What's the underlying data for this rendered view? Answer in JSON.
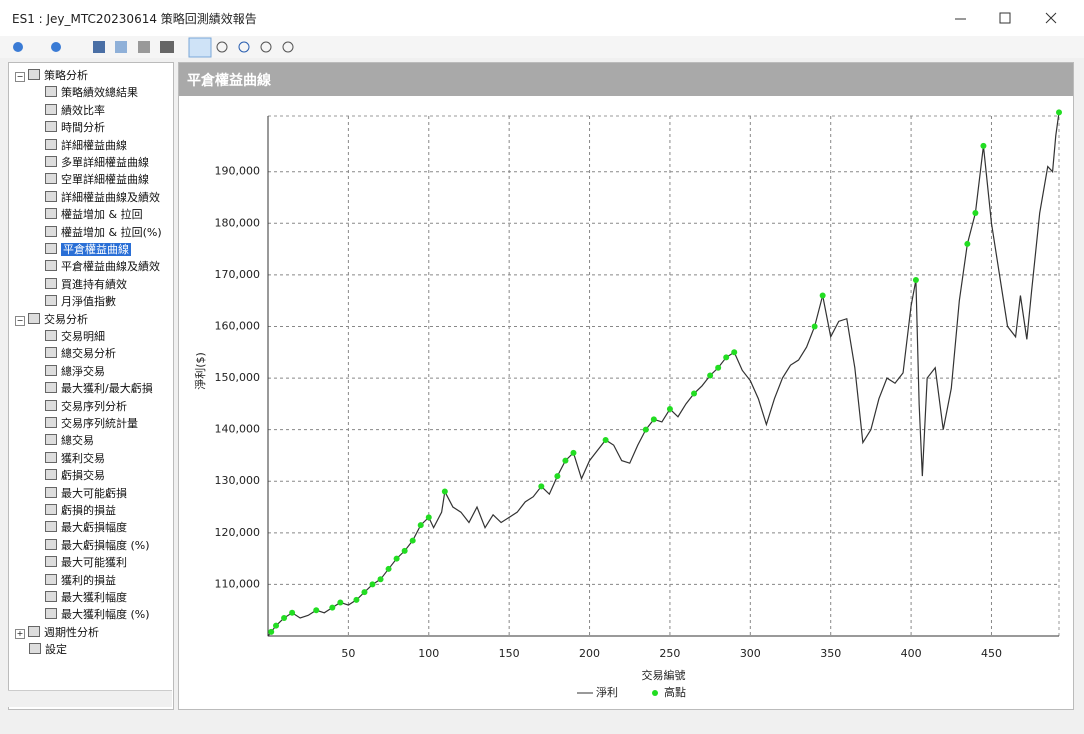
{
  "window": {
    "title": "ES1 : Jey_MTC20230614 策略回測績效報告"
  },
  "tree": [
    {
      "label": "策略分析",
      "children": [
        {
          "label": "策略績效總結果"
        },
        {
          "label": "績效比率"
        },
        {
          "label": "時間分析"
        },
        {
          "label": "詳細權益曲線"
        },
        {
          "label": "多單詳細權益曲線"
        },
        {
          "label": "空單詳細權益曲線"
        },
        {
          "label": "詳細權益曲線及績效"
        },
        {
          "label": "權益增加 & 拉回"
        },
        {
          "label": "權益增加 & 拉回(%)"
        },
        {
          "label": "平倉權益曲線",
          "selected": true
        },
        {
          "label": "平倉權益曲線及績效"
        },
        {
          "label": "買進持有績效"
        },
        {
          "label": "月淨值指數"
        }
      ]
    },
    {
      "label": "交易分析",
      "children": [
        {
          "label": "交易明細"
        },
        {
          "label": "總交易分析"
        },
        {
          "label": "總淨交易"
        },
        {
          "label": "最大獲利/最大虧損"
        },
        {
          "label": "交易序列分析"
        },
        {
          "label": "交易序列統計量"
        },
        {
          "label": "總交易"
        },
        {
          "label": "獲利交易"
        },
        {
          "label": "虧損交易"
        },
        {
          "label": "最大可能虧損"
        },
        {
          "label": "虧損的損益"
        },
        {
          "label": "最大虧損幅度"
        },
        {
          "label": "最大虧損幅度 (%)"
        },
        {
          "label": "最大可能獲利"
        },
        {
          "label": "獲利的損益"
        },
        {
          "label": "最大獲利幅度"
        },
        {
          "label": "最大獲利幅度 (%)"
        }
      ]
    },
    {
      "label": "週期性分析",
      "children": []
    },
    {
      "label": "設定"
    }
  ],
  "panel": {
    "title": "平倉權益曲線"
  },
  "chart_data": {
    "type": "line",
    "x_label": "交易編號",
    "y_label": "淨利($)",
    "xlim": [
      0,
      492
    ],
    "xticks": [
      50,
      100,
      150,
      200,
      250,
      300,
      350,
      400,
      450
    ],
    "ylim": [
      100000,
      200800
    ],
    "yticks": [
      {
        "value": 110000,
        "label": "110,000"
      },
      {
        "value": 120000,
        "label": "120,000"
      },
      {
        "value": 130000,
        "label": "130,000"
      },
      {
        "value": 140000,
        "label": "140,000"
      },
      {
        "value": 150000,
        "label": "150,000"
      },
      {
        "value": 160000,
        "label": "160,000"
      },
      {
        "value": 170000,
        "label": "170,000"
      },
      {
        "value": 180000,
        "label": "180,000"
      },
      {
        "value": 190000,
        "label": "190,000"
      }
    ],
    "grid": true,
    "series": [
      {
        "name": "淨利",
        "kind": "line",
        "color": "#333333",
        "x": [
          0,
          5,
          10,
          15,
          20,
          25,
          30,
          35,
          40,
          45,
          50,
          55,
          60,
          65,
          70,
          75,
          80,
          85,
          90,
          95,
          100,
          103,
          108,
          110,
          115,
          120,
          125,
          130,
          135,
          140,
          145,
          150,
          155,
          160,
          165,
          170,
          175,
          180,
          185,
          190,
          195,
          200,
          205,
          210,
          215,
          220,
          225,
          230,
          235,
          240,
          245,
          250,
          255,
          260,
          265,
          270,
          275,
          280,
          285,
          290,
          295,
          300,
          305,
          310,
          315,
          320,
          325,
          330,
          335,
          340,
          345,
          350,
          355,
          360,
          365,
          370,
          375,
          380,
          385,
          390,
          395,
          400,
          403,
          405,
          407,
          410,
          415,
          420,
          425,
          430,
          435,
          440,
          445,
          450,
          455,
          460,
          465,
          468,
          472,
          475,
          480,
          485,
          488,
          490,
          492
        ],
        "values": [
          100000,
          102000,
          103500,
          104500,
          103500,
          104000,
          105000,
          104500,
          105500,
          106500,
          106000,
          107000,
          108500,
          110000,
          111000,
          113000,
          115000,
          116500,
          118500,
          121500,
          123000,
          121000,
          124000,
          128000,
          125000,
          124000,
          122000,
          125000,
          121000,
          123500,
          122000,
          123000,
          124000,
          126000,
          127000,
          129000,
          127500,
          131000,
          134000,
          135500,
          130500,
          134000,
          136000,
          138000,
          137000,
          134000,
          133500,
          137000,
          140000,
          142000,
          141500,
          144000,
          142500,
          145000,
          147000,
          148500,
          150500,
          152000,
          154000,
          155000,
          151500,
          149500,
          146000,
          141000,
          146000,
          150000,
          152500,
          153500,
          156000,
          160000,
          166000,
          158000,
          161000,
          161500,
          152000,
          137500,
          140000,
          146000,
          150000,
          149000,
          151000,
          164000,
          169000,
          145000,
          131000,
          150000,
          152000,
          140000,
          148000,
          165000,
          176000,
          182000,
          195000,
          180000,
          170000,
          160000,
          158000,
          166000,
          157500,
          167000,
          182000,
          191000,
          190000,
          197000,
          201500
        ]
      },
      {
        "name": "高點",
        "kind": "scatter",
        "color": "#22dd22",
        "x": [
          2,
          5,
          10,
          15,
          30,
          40,
          45,
          55,
          60,
          65,
          70,
          75,
          80,
          85,
          90,
          95,
          100,
          110,
          170,
          180,
          185,
          190,
          210,
          235,
          240,
          250,
          265,
          275,
          280,
          285,
          290,
          340,
          345,
          403,
          435,
          440,
          445,
          492
        ],
        "values": [
          100800,
          102000,
          103500,
          104500,
          105000,
          105500,
          106500,
          107000,
          108500,
          110000,
          111000,
          113000,
          115000,
          116500,
          118500,
          121500,
          123000,
          128000,
          129000,
          131000,
          134000,
          135500,
          138000,
          140000,
          142000,
          144000,
          147000,
          150500,
          152000,
          154000,
          155000,
          160000,
          166000,
          169000,
          176000,
          182000,
          195000,
          201500
        ]
      }
    ]
  }
}
